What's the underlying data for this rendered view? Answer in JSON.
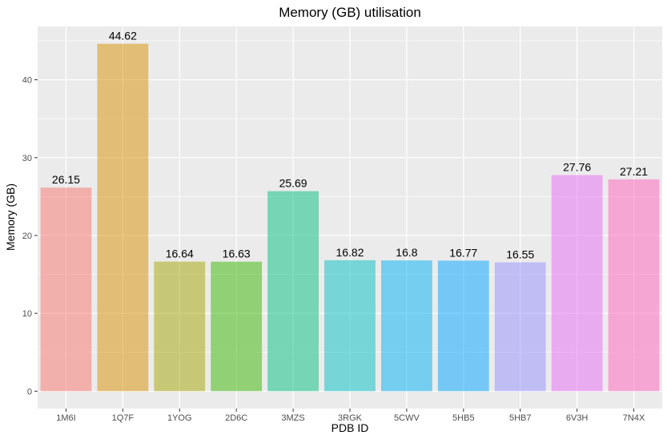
{
  "chart_data": {
    "type": "bar",
    "title": "Memory (GB) utilisation",
    "xlabel": "PDB ID",
    "ylabel": "Memory (GB)",
    "categories": [
      "1M6I",
      "1Q7F",
      "1YOG",
      "2D6C",
      "3MZS",
      "3RGK",
      "5CWV",
      "5HB5",
      "5HB7",
      "6V3H",
      "7N4X"
    ],
    "values": [
      26.15,
      44.62,
      16.64,
      16.63,
      25.69,
      16.82,
      16.8,
      16.77,
      16.55,
      27.76,
      27.21
    ],
    "value_labels": [
      "26.15",
      "44.62",
      "16.64",
      "16.63",
      "25.69",
      "16.82",
      "16.8",
      "16.77",
      "16.55",
      "27.76",
      "27.21"
    ],
    "yticks": [
      0,
      10,
      20,
      30,
      40
    ],
    "ylim": [
      -2.23,
      46.85
    ],
    "grid": true,
    "legend": "none",
    "colors": [
      "#F8766D",
      "#D89000",
      "#A3A500",
      "#39B600",
      "#00BF7D",
      "#00BFC4",
      "#00B0F6",
      "#00A5FF",
      "#9590FF",
      "#E76BF3",
      "#FF62BC"
    ],
    "bar_opacity": 0.5,
    "panel_background": "#EBEBEB",
    "grid_color": "#FFFFFF"
  }
}
